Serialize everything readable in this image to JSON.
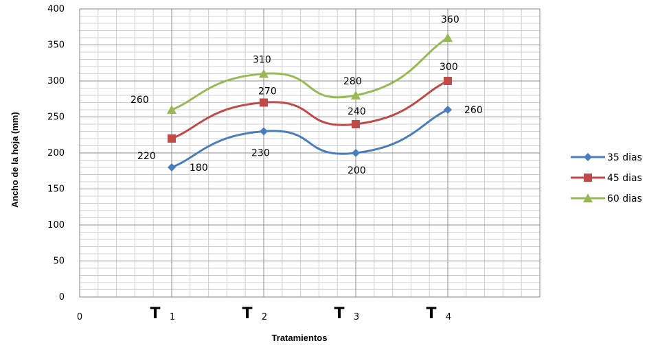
{
  "chart_data": {
    "type": "line",
    "title": "",
    "xlabel": "Tratamientos",
    "ylabel": "Ancho de la hoja (mm)",
    "ylim": [
      0,
      400
    ],
    "y_ticks": [
      "0",
      "50",
      "100",
      "150",
      "200",
      "250",
      "300",
      "350",
      "400"
    ],
    "x_origin_label": "0",
    "categories": [
      {
        "main": "T",
        "sub": "1"
      },
      {
        "main": "T",
        "sub": "2"
      },
      {
        "main": "T",
        "sub": "3"
      },
      {
        "main": "T",
        "sub": "4"
      }
    ],
    "grid": true,
    "legend_position": "right",
    "series": [
      {
        "name": "35 dias",
        "color": "#4a7ebb",
        "marker": "diamond",
        "values": [
          180,
          230,
          200,
          260
        ],
        "labels": [
          "180",
          "230",
          "200",
          "260"
        ]
      },
      {
        "name": "45 dias",
        "color": "#be4b48",
        "marker": "square",
        "values": [
          220,
          270,
          240,
          300
        ],
        "labels": [
          "220",
          "270",
          "240",
          "300"
        ]
      },
      {
        "name": "60 dias",
        "color": "#98b954",
        "marker": "triangle",
        "values": [
          260,
          310,
          280,
          360
        ],
        "labels": [
          "260",
          "310",
          "280",
          "360"
        ]
      }
    ]
  }
}
